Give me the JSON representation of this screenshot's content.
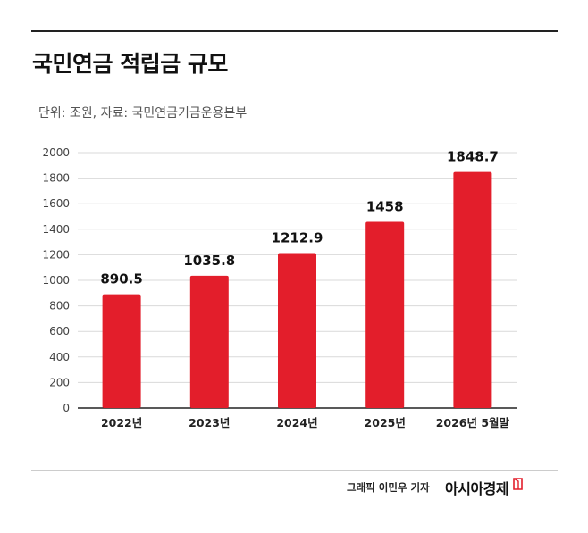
{
  "header": {
    "title": "국민연금 적립금 규모",
    "subtitle": "단위: 조원, 자료: 국민연금기금운용본부"
  },
  "footer": {
    "credit": "그래픽  이민우 기자",
    "brand": "아시아경제"
  },
  "colors": {
    "bar": "#e31e2b",
    "grid": "#d9d9d9",
    "axis": "#222222"
  },
  "chart_data": {
    "type": "bar",
    "title": "",
    "xlabel": "",
    "ylabel": "",
    "categories": [
      "2022년",
      "2023년",
      "2024년",
      "2025년",
      "2026년 5월말"
    ],
    "values": [
      890.5,
      1035.8,
      1212.9,
      1458,
      1848.7
    ],
    "value_labels": [
      "890.5",
      "1035.8",
      "1212.9",
      "1458",
      "1848.7"
    ],
    "ylim": [
      0,
      2000
    ],
    "yticks": [
      0,
      200,
      400,
      600,
      800,
      1000,
      1200,
      1400,
      1600,
      1800,
      2000
    ],
    "grid": true
  }
}
